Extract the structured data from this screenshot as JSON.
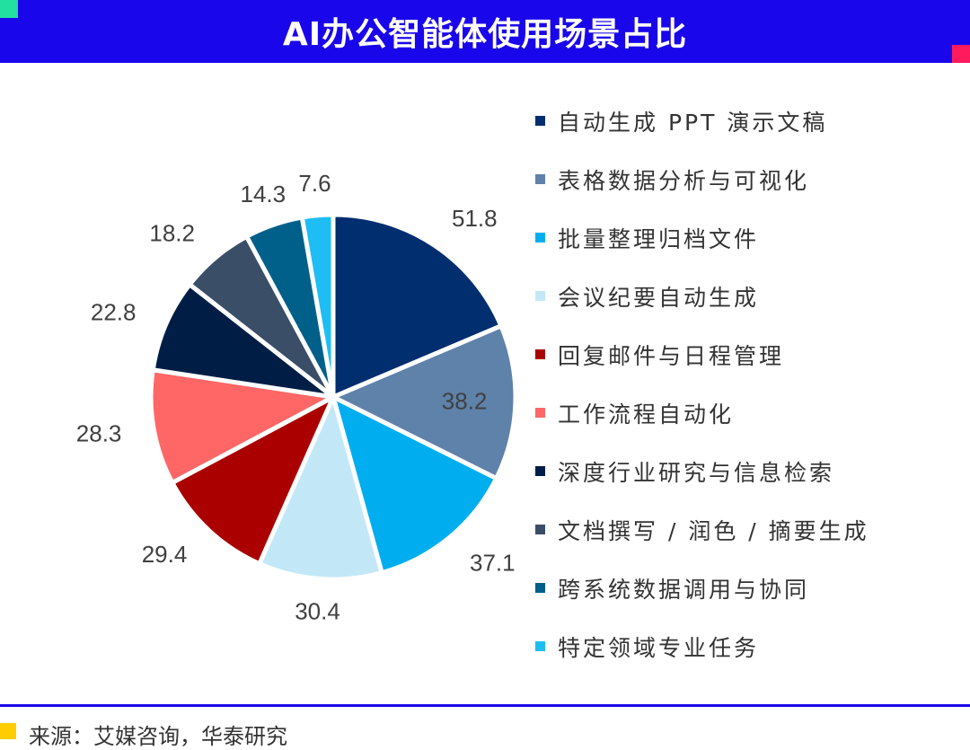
{
  "page": {
    "title": "AI办公智能体使用场景占比",
    "source": "来源：艾媒咨询，华泰研究"
  },
  "chart_data": {
    "type": "pie",
    "title": "AI办公智能体使用场景占比",
    "categories": [
      "自动生成 PPT 演示文稿",
      "表格数据分析与可视化",
      "批量整理归档文件",
      "会议纪要自动生成",
      "回复邮件与日程管理",
      "工作流程自动化",
      "深度行业研究与信息检索",
      "文档撰写 / 润色 / 摘要生成",
      "跨系统数据调用与协同",
      "特定领域专业任务"
    ],
    "values": [
      51.8,
      38.2,
      37.1,
      30.4,
      29.4,
      28.3,
      22.8,
      18.2,
      14.3,
      7.6
    ],
    "value_labels": [
      "51.8",
      "38.2",
      "37.1",
      "30.4",
      "29.4",
      "28.3",
      "22.8",
      "18.2",
      "14.3",
      "7.6"
    ],
    "colors": [
      "#002e6e",
      "#5f82ab",
      "#00aeef",
      "#c2e8f8",
      "#ab0000",
      "#ff6666",
      "#001e45",
      "#3b4e67",
      "#006089",
      "#1ebdf4"
    ],
    "legend_position": "right",
    "start": "12 o'clock",
    "direction": "clockwise"
  }
}
